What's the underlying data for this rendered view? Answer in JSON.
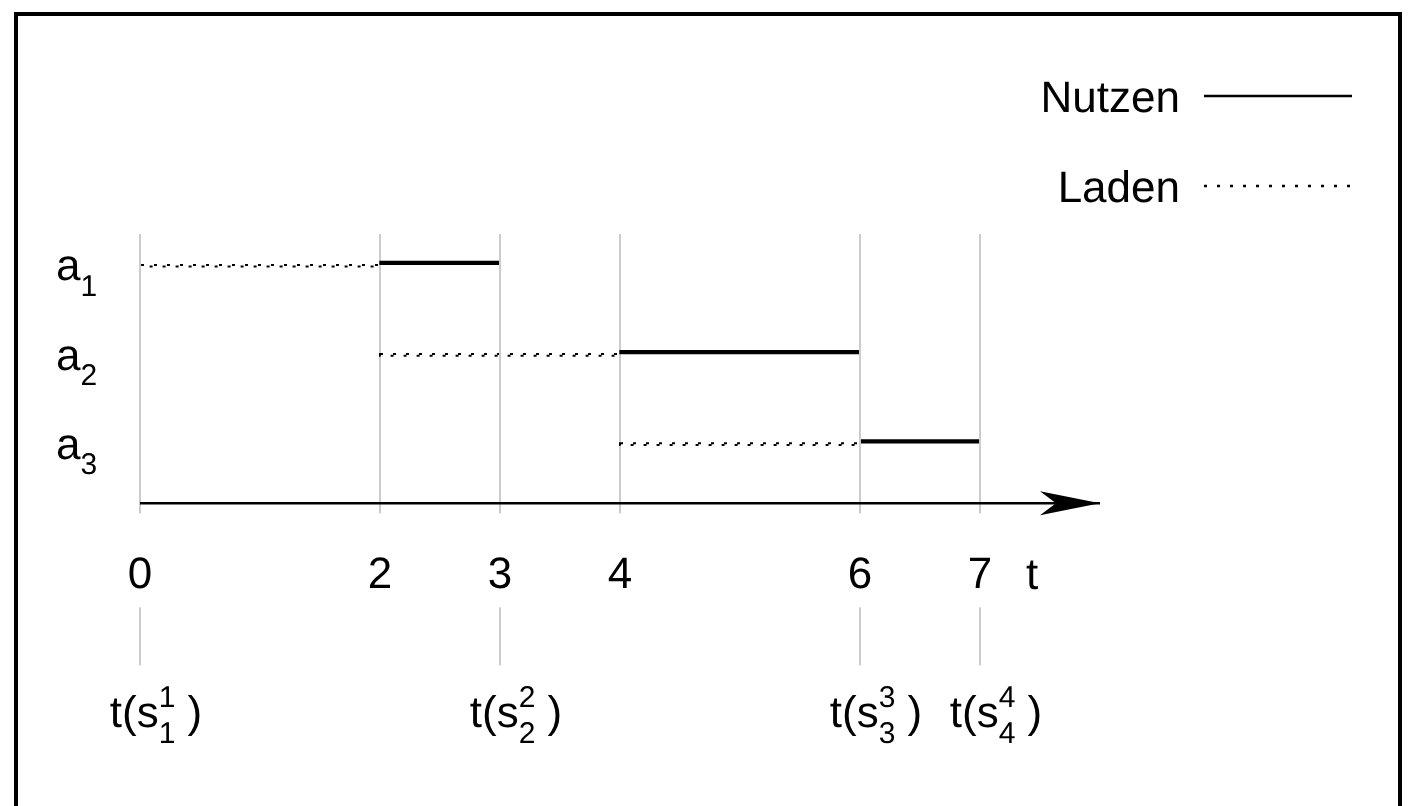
{
  "chart_data": {
    "type": "bar",
    "orientation": "horizontal",
    "categories": [
      "a$_{1}$",
      "a$_{2}$",
      "a$_{3}$"
    ],
    "series": [
      {
        "name": "Nutzen",
        "color": "#000000",
        "line_style": "solid",
        "base": [
          2,
          4,
          6
        ],
        "values": [
          1,
          2,
          1
        ]
      },
      {
        "name": "Laden",
        "color": "#000000",
        "line_style": "dotted",
        "base": [
          0,
          2,
          4
        ],
        "values": [
          2,
          2,
          2
        ]
      }
    ],
    "xlim": [
      0,
      8
    ],
    "xticks": [
      0,
      2,
      3,
      4,
      6,
      7
    ],
    "xlabel": "t",
    "grid": "x",
    "legend": "top right",
    "ref_lines": [
      {
        "axis": "x",
        "value": 0,
        "label": "t(s$^{1}$$_{1}$ )",
        "color": "#cccccc"
      },
      {
        "axis": "x",
        "value": 3,
        "label": "t(s$^{2}$$_{2}$ )",
        "color": "#cccccc"
      },
      {
        "axis": "x",
        "value": 6,
        "label": "t(s$^{3}$$_{3}$ )",
        "color": "#cccccc"
      },
      {
        "axis": "x",
        "value": 7,
        "label": "t(s$^{4}$$_{4}$ )",
        "color": "#cccccc"
      }
    ]
  }
}
